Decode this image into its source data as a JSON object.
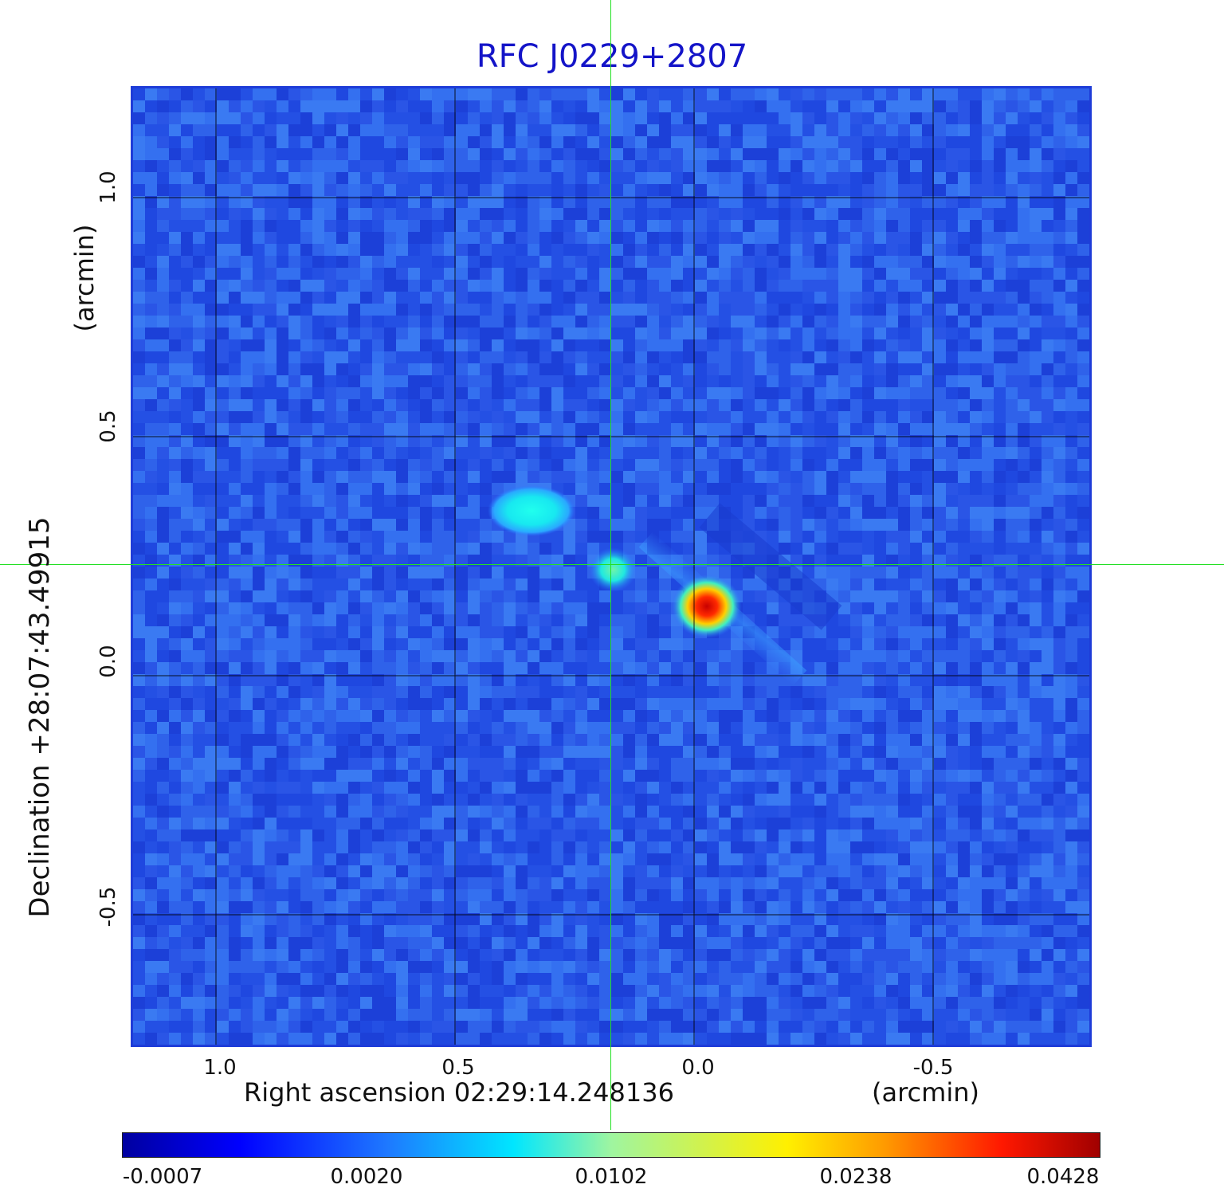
{
  "title": "RFC J0229+2807",
  "x_axis": {
    "label": "Right ascension  02:29:14.248136",
    "unit": "(arcmin)",
    "ticks": [
      "1.0",
      "0.5",
      "0.0",
      "-0.5"
    ]
  },
  "y_axis": {
    "label": "Declination  +28:07:43.49915",
    "unit": "(arcmin)",
    "ticks": [
      "1.0",
      "0.5",
      "0.0",
      "-0.5"
    ]
  },
  "colorbar": {
    "ticks": [
      "-0.0007",
      "0.0020",
      "0.0102",
      "0.0238",
      "0.0428"
    ],
    "colormap": "jet"
  },
  "colors": {
    "title": "#1414c8",
    "background_map": "#2a55e6",
    "crosshair": "#22e022",
    "grid": "#000000"
  }
}
